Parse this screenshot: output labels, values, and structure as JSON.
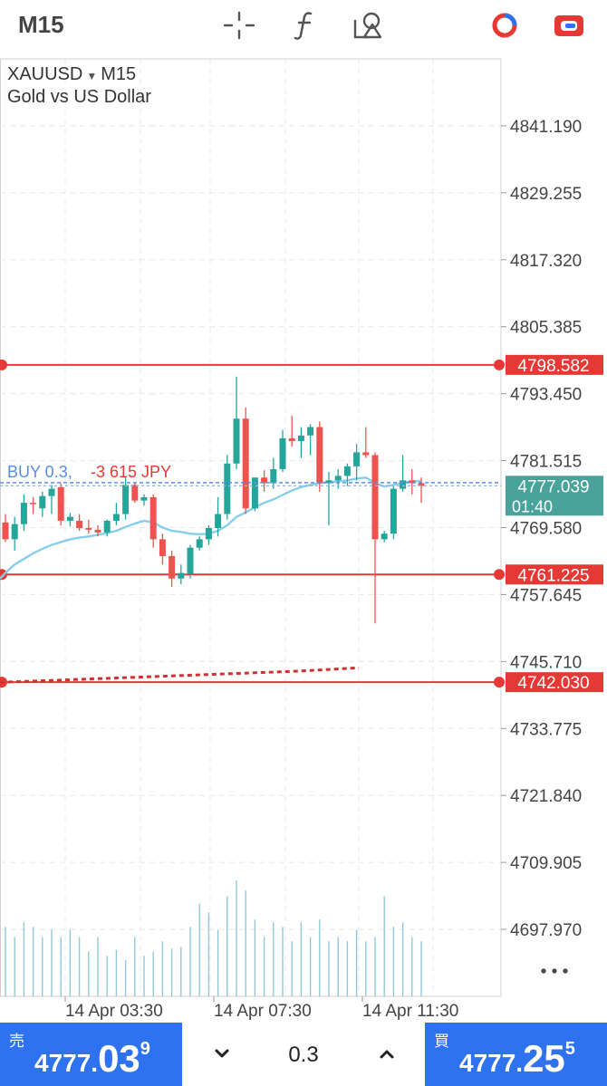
{
  "toolbar": {
    "timeframe": "M15",
    "icons": [
      "crosshair-icon",
      "function-icon",
      "objects-icon",
      "chart-settings-icon",
      "toggle-icon"
    ]
  },
  "symbol": {
    "name": "XAUUSD",
    "timeframe": "M15",
    "description": "Gold vs US Dollar"
  },
  "colors": {
    "bull": "#26a69a",
    "bear": "#ef5350",
    "level_line": "#e53935",
    "ma": "#87ceeb",
    "volume": "#90c8d8",
    "primary": "#2e72f0",
    "grid": "#e8e8e8",
    "bid_line": "#5b8fe0"
  },
  "chart_data": {
    "type": "candlestick",
    "symbol": "XAUUSD",
    "timeframe": "M15",
    "ylim": [
      4686.035,
      4853.125
    ],
    "y_ticks": [
      "4841.190",
      "4829.255",
      "4817.320",
      "4805.385",
      "4793.450",
      "4781.515",
      "4769.580",
      "4757.645",
      "4745.710",
      "4733.775",
      "4721.840",
      "4709.905",
      "4697.970"
    ],
    "x_ticks": [
      "14 Apr 03:30",
      "14 Apr 07:30",
      "14 Apr 11:30"
    ],
    "current_price": "4777.039",
    "countdown": "01:40",
    "levels": [
      {
        "price": 4798.582,
        "label": "4798.582",
        "style": "solid"
      },
      {
        "price": 4761.225,
        "label": "4761.225",
        "style": "solid"
      },
      {
        "price": 4742.03,
        "label": "4742.030",
        "style": "solid"
      }
    ],
    "position_label": {
      "side": "BUY",
      "text": "BUY 0.3,",
      "pl_text": "-3 615 JPY",
      "price": 4777.6
    },
    "candles": [
      [
        4770.5,
        4772.0,
        4767.0,
        4767.5
      ],
      [
        4767.5,
        4771.5,
        4765.5,
        4770.2
      ],
      [
        4770.2,
        4775.5,
        4769.0,
        4774.0
      ],
      [
        4774.0,
        4775.0,
        4772.0,
        4773.8
      ],
      [
        4773.0,
        4776.0,
        4771.5,
        4775.2
      ],
      [
        4775.2,
        4777.2,
        4772.0,
        4776.5
      ],
      [
        4776.8,
        4777.5,
        4770.0,
        4770.8
      ],
      [
        4770.8,
        4772.2,
        4769.8,
        4771.5
      ],
      [
        4770.8,
        4772.0,
        4769.0,
        4769.5
      ],
      [
        4769.5,
        4771.0,
        4768.5,
        4769.2
      ],
      [
        4769.2,
        4770.0,
        4768.0,
        4768.7
      ],
      [
        4768.7,
        4771.0,
        4768.0,
        4770.8
      ],
      [
        4770.8,
        4774.0,
        4770.0,
        4772.0
      ],
      [
        4772.0,
        4778.5,
        4771.0,
        4777.2
      ],
      [
        4777.2,
        4777.6,
        4774.0,
        4774.4
      ],
      [
        4774.4,
        4775.5,
        4773.5,
        4775.0
      ],
      [
        4775.0,
        4775.5,
        4766.0,
        4767.5
      ],
      [
        4767.5,
        4768.5,
        4763.0,
        4764.5
      ],
      [
        4764.5,
        4765.5,
        4759.0,
        4760.5
      ],
      [
        4760.5,
        4763.0,
        4759.5,
        4761.5
      ],
      [
        4761.3,
        4766.5,
        4760.5,
        4766.0
      ],
      [
        4766.0,
        4768.0,
        4765.5,
        4767.5
      ],
      [
        4767.5,
        4770.0,
        4766.5,
        4769.5
      ],
      [
        4769.5,
        4775.0,
        4768.0,
        4772.0
      ],
      [
        4772.0,
        4782.5,
        4771.0,
        4781.0
      ],
      [
        4781.0,
        4796.5,
        4780.0,
        4789.0
      ],
      [
        4789.0,
        4791.0,
        4772.0,
        4773.0
      ],
      [
        4773.0,
        4778.5,
        4772.5,
        4778.5
      ],
      [
        4778.5,
        4779.8,
        4776.0,
        4777.5
      ],
      [
        4777.5,
        4782.0,
        4776.5,
        4780.0
      ],
      [
        4780.0,
        4787.0,
        4779.5,
        4785.5
      ],
      [
        4785.5,
        4789.5,
        4784.0,
        4785.0
      ],
      [
        4785.0,
        4787.5,
        4782.0,
        4786.0
      ],
      [
        4786.0,
        4788.0,
        4782.5,
        4787.5
      ],
      [
        4787.5,
        4788.5,
        4776.0,
        4777.5
      ],
      [
        4777.5,
        4779.5,
        4770.0,
        4778.0
      ],
      [
        4778.0,
        4780.0,
        4776.5,
        4778.8
      ],
      [
        4778.8,
        4781.0,
        4777.0,
        4780.5
      ],
      [
        4780.5,
        4784.5,
        4778.0,
        4783.0
      ],
      [
        4783.0,
        4787.5,
        4782.0,
        4782.5
      ],
      [
        4782.5,
        4783.0,
        4752.5,
        4767.5
      ],
      [
        4767.5,
        4769.0,
        4767.0,
        4768.5
      ],
      [
        4768.5,
        4777.0,
        4767.5,
        4776.5
      ],
      [
        4776.5,
        4782.5,
        4776.0,
        4778.0
      ],
      [
        4778.0,
        4780.0,
        4775.5,
        4777.5
      ],
      [
        4777.5,
        4778.5,
        4774.0,
        4777.0
      ]
    ],
    "moving_average": [
      4761.5,
      4763.0,
      4764.0,
      4765.0,
      4765.8,
      4766.5,
      4767.0,
      4767.5,
      4767.8,
      4768.0,
      4768.3,
      4768.6,
      4769.0,
      4769.7,
      4770.3,
      4770.8,
      4770.5,
      4769.6,
      4769.0,
      4768.8,
      4768.5,
      4768.4,
      4768.5,
      4769.0,
      4770.0,
      4771.5,
      4772.3,
      4773.2,
      4774.0,
      4774.6,
      4775.4,
      4776.2,
      4776.8,
      4777.2,
      4777.5,
      4777.7,
      4777.8,
      4778.0,
      4778.3,
      4778.5,
      4777.5,
      4776.9,
      4777.2,
      4777.6,
      4777.8,
      4777.9
    ],
    "ma2_dotted": [
      4742.0,
      4742.2,
      4742.4,
      4742.6,
      4742.8,
      4743.0,
      4743.2,
      4743.4,
      4743.6,
      4743.8,
      4744.0,
      4744.3,
      4744.6
    ],
    "volumes": [
      0.48,
      0.41,
      0.51,
      0.48,
      0.41,
      0.46,
      0.41,
      0.46,
      0.41,
      0.31,
      0.41,
      0.28,
      0.32,
      0.25,
      0.41,
      0.28,
      0.31,
      0.38,
      0.33,
      0.34,
      0.48,
      0.64,
      0.58,
      0.46,
      0.69,
      0.8,
      0.73,
      0.53,
      0.41,
      0.51,
      0.48,
      0.38,
      0.51,
      0.41,
      0.53,
      0.38,
      0.41,
      0.38,
      0.46,
      0.38,
      0.41,
      0.69,
      0.48,
      0.51,
      0.41,
      0.38
    ]
  },
  "trade": {
    "sell_label": "売",
    "sell_price_small": "4777.",
    "sell_price_big": "03",
    "sell_price_sup": "9",
    "buy_label": "買",
    "buy_price_small": "4777.",
    "buy_price_big": "25",
    "buy_price_sup": "5",
    "volume": "0.3"
  }
}
